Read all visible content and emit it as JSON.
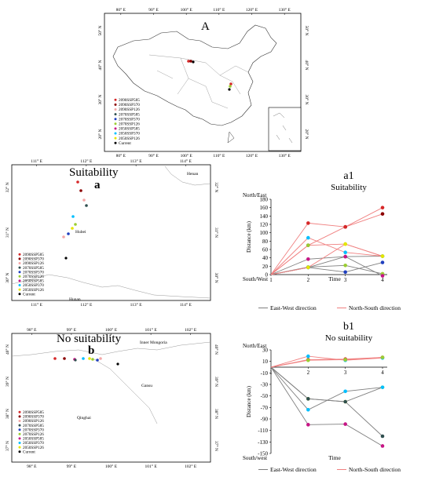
{
  "map_a": {
    "label": "A",
    "top_ticks": [
      "80° E",
      "90° E",
      "100° E",
      "110° E",
      "120° E",
      "130° E"
    ],
    "bottom_ticks": [
      "80° E",
      "90° E",
      "100° E",
      "110° E",
      "120° E",
      "130° E"
    ],
    "left_ticks": [
      "50° N",
      "40° N",
      "30° N",
      "20° N"
    ],
    "right_ticks": [
      "50° N",
      "40° N",
      "30° N",
      "20° N"
    ],
    "legend": [
      {
        "label": "2090SSP585",
        "color": "#d62728"
      },
      {
        "label": "2090SSP370",
        "color": "#8b0000"
      },
      {
        "label": "2090SSP126",
        "color": "#f4a6a6"
      },
      {
        "label": "2070SSP585",
        "color": "#2f4f4f"
      },
      {
        "label": "2070SSP370",
        "color": "#1f3fbf"
      },
      {
        "label": "2070SSP126",
        "color": "#9acd32"
      },
      {
        "label": "2050SSP585",
        "color": "#c71585"
      },
      {
        "label": "2050SSP370",
        "color": "#00bfff"
      },
      {
        "label": "2050SSP126",
        "color": "#e6e600"
      },
      {
        "label": "Current",
        "color": "#000000"
      }
    ]
  },
  "map_a_small": {
    "title": "Suitability",
    "label": "a",
    "top_ticks": [
      "111° E",
      "112° E",
      "113° E",
      "114° E"
    ],
    "bottom_ticks": [
      "111° E",
      "112° E",
      "113° E",
      "114° E"
    ],
    "left_ticks": [
      "32° N",
      "31° N",
      "30° N"
    ],
    "right_ticks": [
      "32° N",
      "31° N",
      "30° N"
    ],
    "regions": [
      "Henan",
      "Hubei",
      "Hunan"
    ],
    "legend": [
      "2090SSP585",
      "2090SSP370",
      "2090SSP126",
      "2070SSP585",
      "2070SSP370",
      "2070SSP126",
      "2050SSP585",
      "2050SSP370",
      "2050SSP126",
      "Current"
    ]
  },
  "map_b_small": {
    "title": "No suitability",
    "label": "b",
    "top_ticks": [
      "98° E",
      "99° E",
      "100° E",
      "101° E",
      "102° E"
    ],
    "bottom_ticks": [
      "98° E",
      "99° E",
      "100° E",
      "101° E",
      "102° E"
    ],
    "left_ticks": [
      "40° N",
      "39° N",
      "38° N",
      "37° N"
    ],
    "right_ticks": [
      "40° N",
      "39° N",
      "38° N",
      "37° N"
    ],
    "regions": [
      "Inner Mongoria",
      "Gansu",
      "Qinghai"
    ],
    "legend": [
      "2090SSP585",
      "2090SSP370",
      "2090SSP126",
      "2070SSP585",
      "2070SSP370",
      "2070SSP126",
      "2050SSP585",
      "2050SSP370",
      "2050SSP126",
      "Current"
    ]
  },
  "chart_data": [
    {
      "type": "line",
      "panel": "a1",
      "title": "Suitability",
      "ylabel": "Distance (km)",
      "xlabel": "Time",
      "top_axis_label": "North/East",
      "bottom_axis_label": "South/West",
      "x": [
        1,
        2,
        3,
        4
      ],
      "ylim": [
        0,
        180
      ],
      "yticks": [
        0,
        20,
        40,
        60,
        80,
        100,
        120,
        140,
        160,
        180
      ],
      "legend": [
        "East-West direction",
        "North-South direction"
      ],
      "series": [
        {
          "direction": "ew",
          "color": "#7f7f7f",
          "marker": "#2f4f4f",
          "values": [
            0,
            17,
            43,
            44
          ]
        },
        {
          "direction": "ew",
          "color": "#7f7f7f",
          "marker": "#9acd32",
          "values": [
            0,
            18,
            22,
            2
          ]
        },
        {
          "direction": "ew",
          "color": "#7f7f7f",
          "marker": "#1f3fbf",
          "values": [
            0,
            17,
            6,
            29
          ]
        },
        {
          "direction": "ew",
          "color": "#7f7f7f",
          "marker": "#c71585",
          "values": [
            0,
            37,
            43,
            -3
          ]
        },
        {
          "direction": "ns",
          "color": "#f08080",
          "marker": "#8b0000",
          "values": [
            0,
            70,
            114,
            145
          ]
        },
        {
          "direction": "ns",
          "color": "#f08080",
          "marker": "#d62728",
          "values": [
            0,
            123,
            114,
            160
          ]
        },
        {
          "direction": "ns",
          "color": "#f08080",
          "marker": "#00bfff",
          "values": [
            0,
            88,
            53,
            44
          ]
        },
        {
          "direction": "ns",
          "color": "#f08080",
          "marker": "#9acd32",
          "values": [
            0,
            70,
            73,
            44
          ]
        },
        {
          "direction": "ns",
          "color": "#f08080",
          "marker": "#e6e600",
          "values": [
            0,
            17,
            73,
            44
          ]
        }
      ]
    },
    {
      "type": "line",
      "panel": "b1",
      "title": "No suitability",
      "ylabel": "Distance (km)",
      "xlabel": "Time",
      "top_axis_label": "North/East",
      "bottom_axis_label": "South/west",
      "x": [
        1,
        2,
        3,
        4
      ],
      "ylim": [
        -150,
        30
      ],
      "yticks": [
        30,
        10,
        -10,
        -30,
        -50,
        -70,
        -90,
        -110,
        -130,
        -150
      ],
      "legend": [
        "East-West direction",
        "North-South direction"
      ],
      "series": [
        {
          "direction": "ew",
          "color": "#7f7f7f",
          "marker": "#e6e600",
          "values": [
            0,
            -55,
            -60,
            -35
          ]
        },
        {
          "direction": "ew",
          "color": "#7f7f7f",
          "marker": "#00bfff",
          "values": [
            0,
            -74,
            -42,
            -35
          ]
        },
        {
          "direction": "ew",
          "color": "#7f7f7f",
          "marker": "#c71585",
          "values": [
            0,
            -100,
            -99,
            -137
          ]
        },
        {
          "direction": "ew",
          "color": "#7f7f7f",
          "marker": "#2f4f4f",
          "values": [
            0,
            -55,
            -60,
            -120
          ]
        },
        {
          "direction": "ns",
          "color": "#f08080",
          "marker": "#d62728",
          "values": [
            0,
            13,
            14,
            17
          ]
        },
        {
          "direction": "ns",
          "color": "#f08080",
          "marker": "#00bfff",
          "values": [
            0,
            19,
            12,
            16
          ]
        },
        {
          "direction": "ns",
          "color": "#f08080",
          "marker": "#9acd32",
          "values": [
            0,
            12,
            13,
            17
          ]
        }
      ]
    }
  ]
}
